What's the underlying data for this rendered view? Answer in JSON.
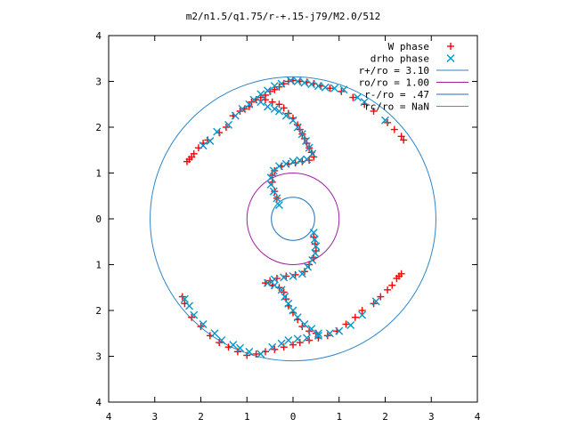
{
  "chart_data": {
    "type": "scatter",
    "title": "m2/n1.5/q1.75/r-+.15-j79/M2.0/512",
    "xlabel": "",
    "ylabel": "",
    "xlim": [
      -4,
      4
    ],
    "ylim": [
      -4,
      4
    ],
    "x_ticks": [
      -4,
      -3,
      -2,
      -1,
      0,
      1,
      2,
      3,
      4
    ],
    "x_tick_labels": [
      "4",
      "3",
      "2",
      "1",
      "0",
      "1",
      "2",
      "3",
      "4"
    ],
    "y_ticks": [
      4,
      3,
      2,
      1,
      0,
      -1,
      -2,
      -3,
      -4
    ],
    "y_tick_labels": [
      "4",
      "3",
      "2",
      "1",
      "0",
      "1",
      "2",
      "3",
      "4"
    ],
    "grid": false,
    "legend_position": "top-right",
    "legend": [
      {
        "label": "W phase",
        "marker": "plus",
        "color": "#ff0000"
      },
      {
        "label": "drho phase",
        "marker": "cross",
        "color": "#0099cc"
      },
      {
        "label": "r+/ro = 3.10",
        "marker": "line",
        "color": "#2f86c9"
      },
      {
        "label": "ro/ro = 1.00",
        "marker": "line",
        "color": "#a020a0"
      },
      {
        "label": "r-/ro = .47",
        "marker": "line",
        "color": "#1a6fc0"
      },
      {
        "label": "rc/ro = NaN",
        "marker": "line",
        "color": "#2aa0d8"
      }
    ],
    "circles": [
      {
        "name": "r+/ro = 3.10",
        "radius": 3.1,
        "color": "#2f86c9"
      },
      {
        "name": "ro/ro = 1.00",
        "radius": 1.0,
        "color": "#a020a0"
      },
      {
        "name": "r-/ro = .47",
        "radius": 0.47,
        "color": "#1a6fc0"
      }
    ],
    "series": [
      {
        "name": "W phase",
        "color": "#ff0000",
        "marker": "plus",
        "points": [
          [
            -2.3,
            1.25
          ],
          [
            -2.25,
            1.3
          ],
          [
            -2.2,
            1.35
          ],
          [
            -2.15,
            1.42
          ],
          [
            -2.05,
            1.55
          ],
          [
            -1.95,
            1.65
          ],
          [
            -1.85,
            1.72
          ],
          [
            -1.6,
            1.88
          ],
          [
            -1.45,
            2.0
          ],
          [
            -1.3,
            2.25
          ],
          [
            -1.15,
            2.35
          ],
          [
            -1.05,
            2.4
          ],
          [
            -0.95,
            2.45
          ],
          [
            -0.9,
            2.55
          ],
          [
            -0.8,
            2.6
          ],
          [
            -0.7,
            2.65
          ],
          [
            -0.6,
            2.7
          ],
          [
            -0.5,
            2.78
          ],
          [
            -0.4,
            2.82
          ],
          [
            -0.3,
            2.88
          ],
          [
            -0.2,
            2.95
          ],
          [
            -0.1,
            3.0
          ],
          [
            0.0,
            3.02
          ],
          [
            0.15,
            3.0
          ],
          [
            0.3,
            2.98
          ],
          [
            0.45,
            2.95
          ],
          [
            0.6,
            2.9
          ],
          [
            0.8,
            2.85
          ],
          [
            1.05,
            2.78
          ],
          [
            1.3,
            2.65
          ],
          [
            1.55,
            2.5
          ],
          [
            1.75,
            2.35
          ],
          [
            2.05,
            2.1
          ],
          [
            2.2,
            1.95
          ],
          [
            2.35,
            1.8
          ],
          [
            2.4,
            1.72
          ],
          [
            -0.6,
            2.6
          ],
          [
            -0.45,
            2.55
          ],
          [
            -0.3,
            2.5
          ],
          [
            -0.2,
            2.42
          ],
          [
            -0.1,
            2.3
          ],
          [
            0.0,
            2.2
          ],
          [
            0.1,
            2.05
          ],
          [
            0.15,
            1.95
          ],
          [
            0.2,
            1.85
          ],
          [
            0.25,
            1.75
          ],
          [
            0.3,
            1.65
          ],
          [
            0.35,
            1.55
          ],
          [
            0.4,
            1.45
          ],
          [
            0.45,
            1.35
          ],
          [
            0.35,
            1.28
          ],
          [
            0.2,
            1.25
          ],
          [
            0.05,
            1.22
          ],
          [
            -0.1,
            1.2
          ],
          [
            -0.25,
            1.15
          ],
          [
            -0.4,
            1.05
          ],
          [
            -0.45,
            0.95
          ],
          [
            -0.45,
            0.8
          ],
          [
            -0.4,
            0.6
          ],
          [
            -0.35,
            0.45
          ],
          [
            2.35,
            -1.2
          ],
          [
            2.3,
            -1.25
          ],
          [
            2.25,
            -1.3
          ],
          [
            2.15,
            -1.45
          ],
          [
            2.05,
            -1.55
          ],
          [
            1.9,
            -1.7
          ],
          [
            1.75,
            -1.85
          ],
          [
            1.5,
            -2.0
          ],
          [
            1.35,
            -2.15
          ],
          [
            1.15,
            -2.3
          ],
          [
            0.95,
            -2.45
          ],
          [
            0.75,
            -2.55
          ],
          [
            0.55,
            -2.6
          ],
          [
            0.35,
            -2.65
          ],
          [
            0.15,
            -2.7
          ],
          [
            0.0,
            -2.75
          ],
          [
            -0.2,
            -2.8
          ],
          [
            -0.4,
            -2.85
          ],
          [
            -0.6,
            -2.9
          ],
          [
            -0.8,
            -2.95
          ],
          [
            -1.0,
            -2.98
          ],
          [
            -1.2,
            -2.9
          ],
          [
            -1.4,
            -2.8
          ],
          [
            -1.6,
            -2.7
          ],
          [
            -1.8,
            -2.55
          ],
          [
            -2.0,
            -2.35
          ],
          [
            -2.2,
            -2.15
          ],
          [
            -2.35,
            -1.85
          ],
          [
            -2.4,
            -1.7
          ],
          [
            0.5,
            -2.5
          ],
          [
            0.35,
            -2.45
          ],
          [
            0.2,
            -2.35
          ],
          [
            0.1,
            -2.2
          ],
          [
            0.0,
            -2.05
          ],
          [
            -0.1,
            -1.9
          ],
          [
            -0.15,
            -1.75
          ],
          [
            -0.2,
            -1.6
          ],
          [
            -0.3,
            -1.5
          ],
          [
            -0.45,
            -1.45
          ],
          [
            -0.6,
            -1.4
          ],
          [
            -0.5,
            -1.35
          ],
          [
            -0.35,
            -1.3
          ],
          [
            -0.15,
            -1.25
          ],
          [
            0.05,
            -1.22
          ],
          [
            0.25,
            -1.15
          ],
          [
            0.35,
            -1.0
          ],
          [
            0.45,
            -0.85
          ],
          [
            0.5,
            -0.7
          ],
          [
            0.48,
            -0.55
          ],
          [
            0.45,
            -0.4
          ]
        ]
      },
      {
        "name": "drho phase",
        "color": "#0099cc",
        "marker": "cross",
        "points": [
          [
            -1.95,
            1.6
          ],
          [
            -1.8,
            1.7
          ],
          [
            -1.65,
            1.9
          ],
          [
            -1.4,
            2.05
          ],
          [
            -1.25,
            2.25
          ],
          [
            -1.1,
            2.4
          ],
          [
            -0.95,
            2.5
          ],
          [
            -0.85,
            2.6
          ],
          [
            -0.7,
            2.72
          ],
          [
            -0.55,
            2.8
          ],
          [
            -0.4,
            2.9
          ],
          [
            -0.25,
            2.95
          ],
          [
            -0.05,
            3.02
          ],
          [
            0.1,
            3.0
          ],
          [
            0.25,
            2.97
          ],
          [
            0.4,
            2.94
          ],
          [
            0.55,
            2.9
          ],
          [
            0.7,
            2.87
          ],
          [
            0.9,
            2.85
          ],
          [
            1.1,
            2.82
          ],
          [
            1.4,
            2.65
          ],
          [
            1.55,
            2.55
          ],
          [
            2.0,
            2.15
          ],
          [
            -0.7,
            2.55
          ],
          [
            -0.55,
            2.45
          ],
          [
            -0.4,
            2.4
          ],
          [
            -0.3,
            2.35
          ],
          [
            -0.15,
            2.25
          ],
          [
            0.0,
            2.15
          ],
          [
            0.1,
            2.0
          ],
          [
            0.2,
            1.85
          ],
          [
            0.28,
            1.7
          ],
          [
            0.35,
            1.55
          ],
          [
            0.42,
            1.42
          ],
          [
            0.3,
            1.3
          ],
          [
            0.15,
            1.28
          ],
          [
            0.0,
            1.25
          ],
          [
            -0.15,
            1.2
          ],
          [
            -0.3,
            1.15
          ],
          [
            -0.42,
            1.05
          ],
          [
            -0.48,
            0.9
          ],
          [
            -0.48,
            0.75
          ],
          [
            -0.42,
            0.6
          ],
          [
            -0.35,
            0.45
          ],
          [
            -0.3,
            0.3
          ],
          [
            -2.35,
            -1.75
          ],
          [
            -2.25,
            -1.9
          ],
          [
            -2.15,
            -2.1
          ],
          [
            -1.95,
            -2.3
          ],
          [
            -1.7,
            -2.5
          ],
          [
            -1.55,
            -2.65
          ],
          [
            -1.3,
            -2.75
          ],
          [
            -1.15,
            -2.82
          ],
          [
            -0.95,
            -2.9
          ],
          [
            -0.7,
            -2.95
          ],
          [
            -0.45,
            -2.8
          ],
          [
            -0.25,
            -2.72
          ],
          [
            -0.1,
            -2.65
          ],
          [
            0.1,
            -2.62
          ],
          [
            0.3,
            -2.6
          ],
          [
            0.55,
            -2.55
          ],
          [
            0.8,
            -2.5
          ],
          [
            1.0,
            -2.45
          ],
          [
            1.25,
            -2.32
          ],
          [
            1.5,
            -2.1
          ],
          [
            1.8,
            -1.8
          ],
          [
            0.55,
            -2.5
          ],
          [
            0.4,
            -2.4
          ],
          [
            0.25,
            -2.3
          ],
          [
            0.1,
            -2.15
          ],
          [
            0.0,
            -2.0
          ],
          [
            -0.1,
            -1.85
          ],
          [
            -0.18,
            -1.7
          ],
          [
            -0.25,
            -1.55
          ],
          [
            -0.4,
            -1.45
          ],
          [
            -0.55,
            -1.4
          ],
          [
            -0.4,
            -1.32
          ],
          [
            -0.2,
            -1.28
          ],
          [
            0.0,
            -1.25
          ],
          [
            0.2,
            -1.2
          ],
          [
            0.32,
            -1.05
          ],
          [
            0.42,
            -0.9
          ],
          [
            0.48,
            -0.75
          ],
          [
            0.5,
            -0.6
          ],
          [
            0.47,
            -0.45
          ],
          [
            0.45,
            -0.3
          ]
        ]
      }
    ]
  }
}
